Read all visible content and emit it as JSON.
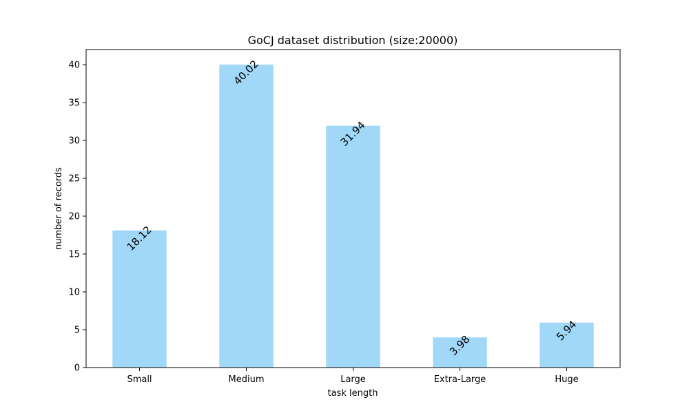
{
  "chart_data": {
    "type": "bar",
    "title": "GoCJ dataset distribution (size:20000)",
    "xlabel": "task length",
    "ylabel": "number of records",
    "categories": [
      "Small",
      "Medium",
      "Large",
      "Extra-Large",
      "Huge"
    ],
    "values": [
      18.12,
      40.02,
      31.94,
      3.98,
      5.94
    ],
    "data_labels": [
      "18.12",
      "40.02",
      "31.94",
      "3.98",
      "5.94"
    ],
    "ylim": [
      0,
      42
    ],
    "yticks": [
      0,
      5,
      10,
      15,
      20,
      25,
      30,
      35,
      40
    ],
    "grid": false,
    "legend": "none",
    "bar_color": "#a1d7f7"
  }
}
